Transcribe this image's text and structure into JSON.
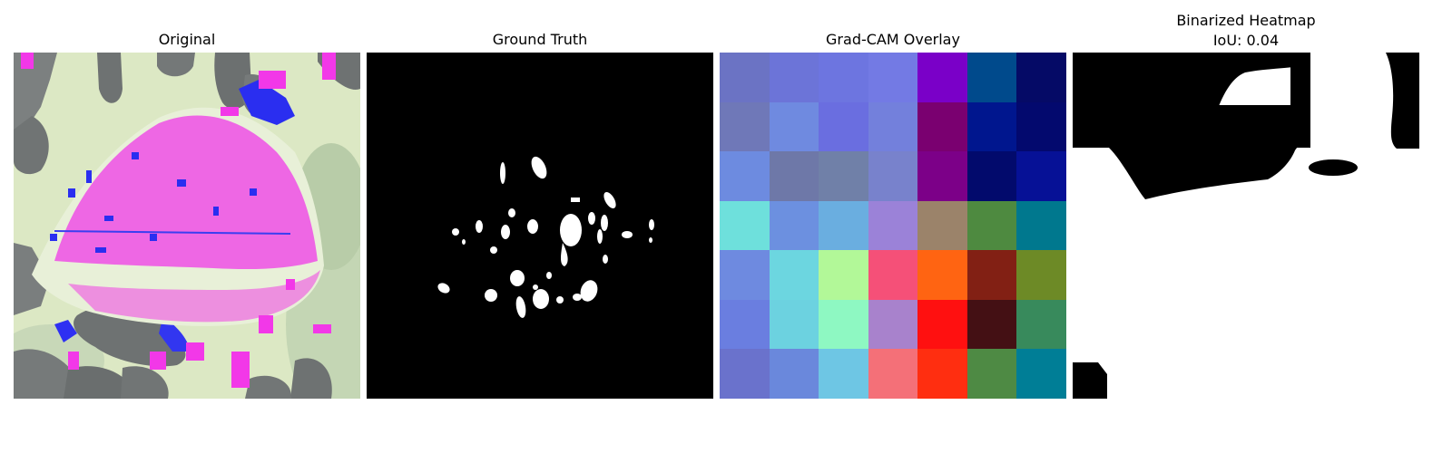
{
  "panels": [
    {
      "title": "Original"
    },
    {
      "title": "Ground Truth"
    },
    {
      "title": "Grad-CAM Overlay"
    },
    {
      "title_line1": "Binarized Heatmap",
      "title_line2": "IoU: 0.04"
    }
  ],
  "overlay_grid_colors": [
    [
      "#6b73c4",
      "#6c74d8",
      "#6d75e0",
      "#737ae4",
      "#7a00c8",
      "#004a8c",
      "#050a66"
    ],
    [
      "#6f78b8",
      "#6f8ae0",
      "#6a6ee0",
      "#7380dc",
      "#7a0070",
      "#00168e",
      "#03096e"
    ],
    [
      "#6d8be0",
      "#6e78a8",
      "#7080a8",
      "#7882cc",
      "#7c0088",
      "#020a6c",
      "#061196"
    ],
    [
      "#6ee0dc",
      "#6c90e0",
      "#6aaee0",
      "#9b82d8",
      "#9b836a",
      "#4e8a40",
      "#00788e"
    ],
    [
      "#6e8ae0",
      "#6cd6e0",
      "#b2f898",
      "#f55078",
      "#ff6412",
      "#822014",
      "#6d8a26"
    ],
    [
      "#6a7ee0",
      "#6cd2e0",
      "#8ef8c2",
      "#a882cc",
      "#ff1010",
      "#441014",
      "#388a5c"
    ],
    [
      "#6a72cc",
      "#6a88dc",
      "#6ec6e4",
      "#f47078",
      "#ff2e10",
      "#4e8a44",
      "#007e96"
    ]
  ]
}
